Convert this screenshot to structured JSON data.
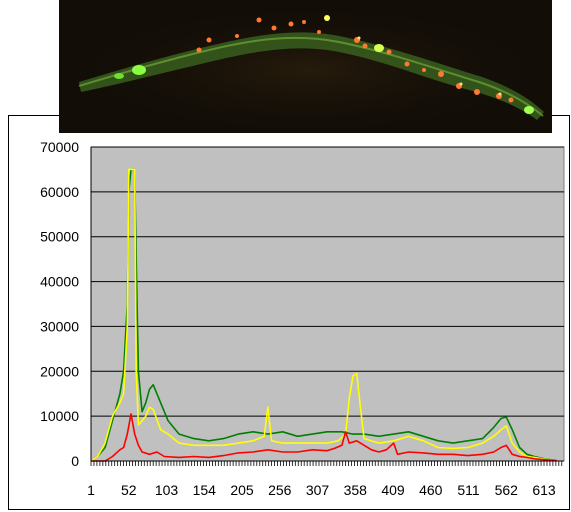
{
  "chart_data": {
    "type": "line",
    "title": "",
    "xlabel": "",
    "ylabel": "",
    "ylim": [
      0,
      70000
    ],
    "yticks": [
      0,
      10000,
      20000,
      30000,
      40000,
      50000,
      60000,
      70000
    ],
    "xticks": [
      1,
      52,
      103,
      154,
      205,
      256,
      307,
      358,
      409,
      460,
      511,
      562,
      613
    ],
    "xlim": [
      1,
      640
    ],
    "grid": "horizontal",
    "legend": "none",
    "plot_background": "#c0c0c0",
    "series": [
      {
        "color": "#008000",
        "points": [
          [
            1,
            0
          ],
          [
            10,
            1000
          ],
          [
            20,
            3000
          ],
          [
            30,
            9000
          ],
          [
            40,
            15000
          ],
          [
            45,
            20000
          ],
          [
            50,
            35000
          ],
          [
            52,
            60000
          ],
          [
            55,
            65000
          ],
          [
            60,
            65000
          ],
          [
            62,
            45000
          ],
          [
            65,
            20000
          ],
          [
            70,
            11000
          ],
          [
            75,
            13000
          ],
          [
            80,
            16000
          ],
          [
            85,
            17000
          ],
          [
            95,
            13000
          ],
          [
            105,
            9000
          ],
          [
            120,
            6000
          ],
          [
            140,
            5000
          ],
          [
            160,
            4500
          ],
          [
            180,
            5000
          ],
          [
            200,
            6000
          ],
          [
            220,
            6500
          ],
          [
            240,
            6000
          ],
          [
            260,
            6500
          ],
          [
            280,
            5500
          ],
          [
            300,
            6000
          ],
          [
            320,
            6500
          ],
          [
            340,
            6500
          ],
          [
            355,
            6000
          ],
          [
            370,
            6000
          ],
          [
            390,
            5500
          ],
          [
            410,
            6000
          ],
          [
            430,
            6500
          ],
          [
            450,
            5500
          ],
          [
            470,
            4500
          ],
          [
            490,
            4000
          ],
          [
            510,
            4500
          ],
          [
            530,
            5000
          ],
          [
            545,
            7500
          ],
          [
            555,
            9500
          ],
          [
            562,
            9800
          ],
          [
            570,
            7000
          ],
          [
            580,
            3000
          ],
          [
            590,
            1500
          ],
          [
            600,
            1000
          ],
          [
            613,
            500
          ],
          [
            630,
            100
          ]
        ]
      },
      {
        "color": "#ffff00",
        "points": [
          [
            1,
            0
          ],
          [
            10,
            1000
          ],
          [
            20,
            4000
          ],
          [
            30,
            10000
          ],
          [
            40,
            13000
          ],
          [
            45,
            15000
          ],
          [
            50,
            30000
          ],
          [
            52,
            65000
          ],
          [
            55,
            65000
          ],
          [
            60,
            65000
          ],
          [
            62,
            20000
          ],
          [
            65,
            8000
          ],
          [
            70,
            9000
          ],
          [
            75,
            10000
          ],
          [
            80,
            12000
          ],
          [
            85,
            11500
          ],
          [
            95,
            7000
          ],
          [
            105,
            6000
          ],
          [
            120,
            4000
          ],
          [
            140,
            3500
          ],
          [
            160,
            3500
          ],
          [
            180,
            3500
          ],
          [
            200,
            4000
          ],
          [
            220,
            4500
          ],
          [
            235,
            5500
          ],
          [
            240,
            12000
          ],
          [
            245,
            4500
          ],
          [
            260,
            4000
          ],
          [
            280,
            4000
          ],
          [
            300,
            4000
          ],
          [
            320,
            4000
          ],
          [
            335,
            4500
          ],
          [
            345,
            6000
          ],
          [
            350,
            14000
          ],
          [
            355,
            19000
          ],
          [
            360,
            19500
          ],
          [
            365,
            12000
          ],
          [
            370,
            5000
          ],
          [
            390,
            4000
          ],
          [
            410,
            4500
          ],
          [
            430,
            5500
          ],
          [
            450,
            4500
          ],
          [
            470,
            3000
          ],
          [
            490,
            2800
          ],
          [
            510,
            3000
          ],
          [
            530,
            4000
          ],
          [
            545,
            5500
          ],
          [
            555,
            7000
          ],
          [
            562,
            7800
          ],
          [
            570,
            4000
          ],
          [
            580,
            2000
          ],
          [
            590,
            1000
          ],
          [
            600,
            800
          ],
          [
            613,
            400
          ],
          [
            630,
            100
          ]
        ]
      },
      {
        "color": "#ff0000",
        "points": [
          [
            1,
            0
          ],
          [
            20,
            0
          ],
          [
            30,
            1000
          ],
          [
            40,
            2500
          ],
          [
            45,
            3000
          ],
          [
            50,
            6000
          ],
          [
            55,
            10500
          ],
          [
            60,
            6000
          ],
          [
            65,
            3500
          ],
          [
            70,
            2000
          ],
          [
            80,
            1500
          ],
          [
            90,
            2000
          ],
          [
            100,
            1000
          ],
          [
            120,
            800
          ],
          [
            140,
            1000
          ],
          [
            160,
            800
          ],
          [
            180,
            1200
          ],
          [
            200,
            1800
          ],
          [
            220,
            2000
          ],
          [
            240,
            2500
          ],
          [
            260,
            2000
          ],
          [
            280,
            2000
          ],
          [
            300,
            2500
          ],
          [
            320,
            2300
          ],
          [
            330,
            2800
          ],
          [
            340,
            3500
          ],
          [
            345,
            6500
          ],
          [
            350,
            4000
          ],
          [
            360,
            4500
          ],
          [
            370,
            3500
          ],
          [
            380,
            2500
          ],
          [
            390,
            2000
          ],
          [
            400,
            2500
          ],
          [
            410,
            4000
          ],
          [
            415,
            1500
          ],
          [
            430,
            2000
          ],
          [
            450,
            1800
          ],
          [
            470,
            1500
          ],
          [
            490,
            1500
          ],
          [
            510,
            1200
          ],
          [
            530,
            1500
          ],
          [
            545,
            2000
          ],
          [
            555,
            3000
          ],
          [
            562,
            3500
          ],
          [
            570,
            1500
          ],
          [
            580,
            1000
          ],
          [
            590,
            800
          ],
          [
            600,
            500
          ],
          [
            613,
            300
          ],
          [
            630,
            100
          ]
        ]
      }
    ]
  }
}
